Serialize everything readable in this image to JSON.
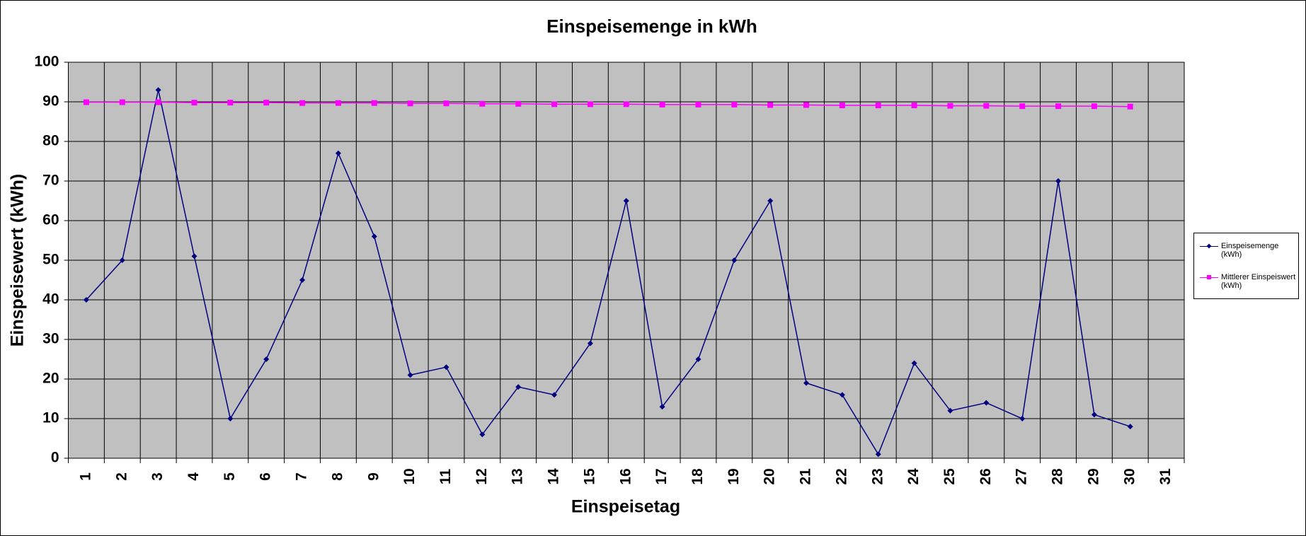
{
  "chart_data": {
    "type": "line",
    "title": "Einspeisemenge in kWh",
    "x_label": "Einspeisetag",
    "y_label": "Einspeisewert  (kWh)",
    "categories": [
      "1",
      "2",
      "3",
      "4",
      "5",
      "6",
      "7",
      "8",
      "9",
      "10",
      "11",
      "12",
      "13",
      "14",
      "15",
      "16",
      "17",
      "18",
      "19",
      "20",
      "21",
      "22",
      "23",
      "24",
      "25",
      "26",
      "27",
      "28",
      "29",
      "30",
      "31"
    ],
    "series": [
      {
        "name": "Einspeisemenge (kWh)",
        "color": "#000080",
        "marker": "diamond",
        "values": [
          40,
          50,
          93,
          51,
          10,
          25,
          45,
          77,
          56,
          21,
          23,
          6,
          18,
          16,
          29,
          65,
          13,
          25,
          50,
          65,
          19,
          16,
          1,
          24,
          12,
          14,
          10,
          70,
          11,
          8,
          null
        ]
      },
      {
        "name": "Mittlerer Einspeiswert (kWh)",
        "color": "#ff00ff",
        "marker": "square",
        "values": [
          89.9,
          89.9,
          89.9,
          89.8,
          89.8,
          89.8,
          89.7,
          89.7,
          89.7,
          89.6,
          89.6,
          89.5,
          89.5,
          89.4,
          89.4,
          89.4,
          89.3,
          89.3,
          89.3,
          89.2,
          89.2,
          89.1,
          89.1,
          89.1,
          89.0,
          89.0,
          88.9,
          88.9,
          88.9,
          88.8,
          null
        ]
      }
    ],
    "ylim": [
      0,
      100
    ],
    "yticks": [
      0,
      10,
      20,
      30,
      40,
      50,
      60,
      70,
      80,
      90,
      100
    ],
    "grid": true,
    "plot_background": "#c0c0c0",
    "legend": "right"
  }
}
